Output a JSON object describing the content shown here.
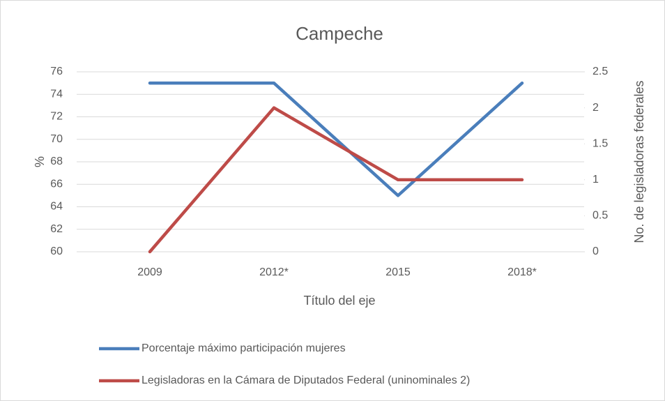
{
  "chart_data": {
    "type": "line",
    "title": "Campeche",
    "categories": [
      "2009",
      "2012*",
      "2015",
      "2018*"
    ],
    "series": [
      {
        "name": "Porcentaje máximo participación mujeres",
        "color": "#4a7ebb",
        "values": [
          75,
          75,
          65,
          75
        ]
      },
      {
        "name": "Legisladoras en la Cámara de Diputados Federal (uninominales 2)",
        "color": "#be4b48",
        "values": [
          0,
          2,
          1,
          1
        ],
        "axis": "y2"
      }
    ],
    "xlabel": "Título del eje",
    "ylabel": "%",
    "y2label": "No. de legisladoras federales",
    "ylim": [
      60,
      76
    ],
    "yticks": [
      60,
      62,
      64,
      66,
      68,
      70,
      72,
      74,
      76
    ],
    "y2lim": [
      0,
      2.5
    ],
    "y2ticks": [
      0,
      0.5,
      1,
      1.5,
      2,
      2.5
    ],
    "grid": true
  }
}
